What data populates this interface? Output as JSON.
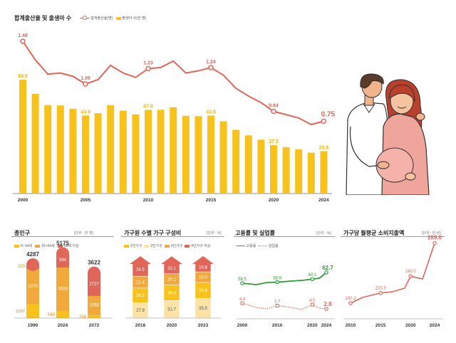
{
  "main": {
    "title": "합계출산율 및 출생아 수",
    "legend": [
      "합계출산율(명)",
      "출생아 수(만 명)"
    ],
    "colors": {
      "rate": "#e0665a",
      "births": "#f6c21b",
      "axis": "#666666"
    }
  },
  "panels": {
    "pop": {
      "title": "총인구",
      "unit": "[단위 : 만 명]",
      "legend": [
        "0~14세",
        "15~64세",
        "65세 이상"
      ]
    },
    "hh": {
      "title": "가구원 수별 가구 구성비",
      "unit": "[단위 : %]",
      "legend": [
        "1인가구",
        "2인가구",
        "3인가구",
        "4인가구 이상"
      ]
    },
    "emp": {
      "title": "고용률 및 실업률",
      "unit": "[단위 : %]",
      "legend": [
        "고용률",
        "실업률"
      ]
    },
    "cons": {
      "title": "가구당 월평균 소비지출액",
      "unit": "[단위 : 만 원]"
    }
  },
  "chart_data": [
    {
      "type": "bar",
      "title": "합계출산율 및 출생아 수",
      "x": [
        2000,
        2001,
        2002,
        2003,
        2004,
        2005,
        2006,
        2007,
        2008,
        2009,
        2010,
        2011,
        2012,
        2013,
        2014,
        2015,
        2016,
        2017,
        2018,
        2019,
        2020,
        2021,
        2022,
        2023,
        2024
      ],
      "tick_labels": [
        "2000",
        "2005",
        "2010",
        "2015",
        "2020",
        "2024"
      ],
      "series": [
        {
          "name": "출생아 수(만 명)",
          "kind": "bar",
          "values": [
            64.0,
            56.0,
            49.7,
            49.5,
            47.7,
            43.9,
            45.2,
            49.7,
            46.6,
            44.5,
            47.0,
            47.1,
            48.5,
            43.7,
            43.5,
            43.8,
            40.6,
            35.8,
            32.7,
            30.3,
            27.2,
            26.1,
            24.9,
            23.0,
            23.8
          ],
          "labels": {
            "2000": "64.0",
            "2005": "43.9",
            "2010": "47.0",
            "2015": "43.8",
            "2020": "27.2",
            "2024": "23.8"
          }
        },
        {
          "name": "합계출산율(명)",
          "kind": "line",
          "values": [
            1.48,
            1.31,
            1.18,
            1.19,
            1.16,
            1.09,
            1.13,
            1.26,
            1.19,
            1.15,
            1.23,
            1.24,
            1.3,
            1.19,
            1.21,
            1.24,
            1.17,
            1.05,
            0.98,
            0.92,
            0.84,
            0.81,
            0.78,
            0.72,
            0.75
          ],
          "labels": {
            "2000": "1.48",
            "2005": "1.09",
            "2010": "1.23",
            "2015": "1.24",
            "2020": "0.84",
            "2024": "0.75"
          }
        }
      ]
    },
    {
      "type": "bar",
      "title": "총인구",
      "categories": [
        "1990",
        "2024",
        "2072"
      ],
      "totals": [
        "4287",
        "5175",
        "3622"
      ],
      "series": [
        {
          "name": "0~14세",
          "values": [
            1097,
            549,
            238
          ]
        },
        {
          "name": "15~64세",
          "values": [
            2970,
            3633,
            1658
          ]
        },
        {
          "name": "65세 이상",
          "values": [
            220,
            994,
            1727
          ]
        }
      ]
    },
    {
      "type": "bar",
      "title": "가구원 수별 가구 구성비",
      "categories": [
        "2016",
        "2020",
        "2023"
      ],
      "series": [
        {
          "name": "1인가구",
          "values": [
            27.9,
            31.7,
            35.5
          ]
        },
        {
          "name": "2인가구",
          "values": [
            26.2,
            28.0,
            28.8
          ]
        },
        {
          "name": "3인가구",
          "values": [
            21.4,
            20.1,
            19.0
          ]
        },
        {
          "name": "4인가구 이상",
          "values": [
            24.5,
            20.1,
            16.8
          ]
        }
      ]
    },
    {
      "type": "line",
      "title": "고용률 및 실업률",
      "x": [
        2000,
        2010,
        2020,
        2024
      ],
      "series": [
        {
          "name": "고용률",
          "values": [
            58.5,
            58.9,
            60.1,
            62.7
          ]
        },
        {
          "name": "실업률",
          "values": [
            4.4,
            3.7,
            4.0,
            2.8
          ]
        }
      ]
    },
    {
      "type": "line",
      "title": "가구당 월평균 소비지출액",
      "x": [
        2010,
        2015,
        2020,
        2024
      ],
      "series": [
        {
          "values": [
            200.2,
            215.3,
            240.0,
            289.0
          ]
        }
      ]
    }
  ]
}
